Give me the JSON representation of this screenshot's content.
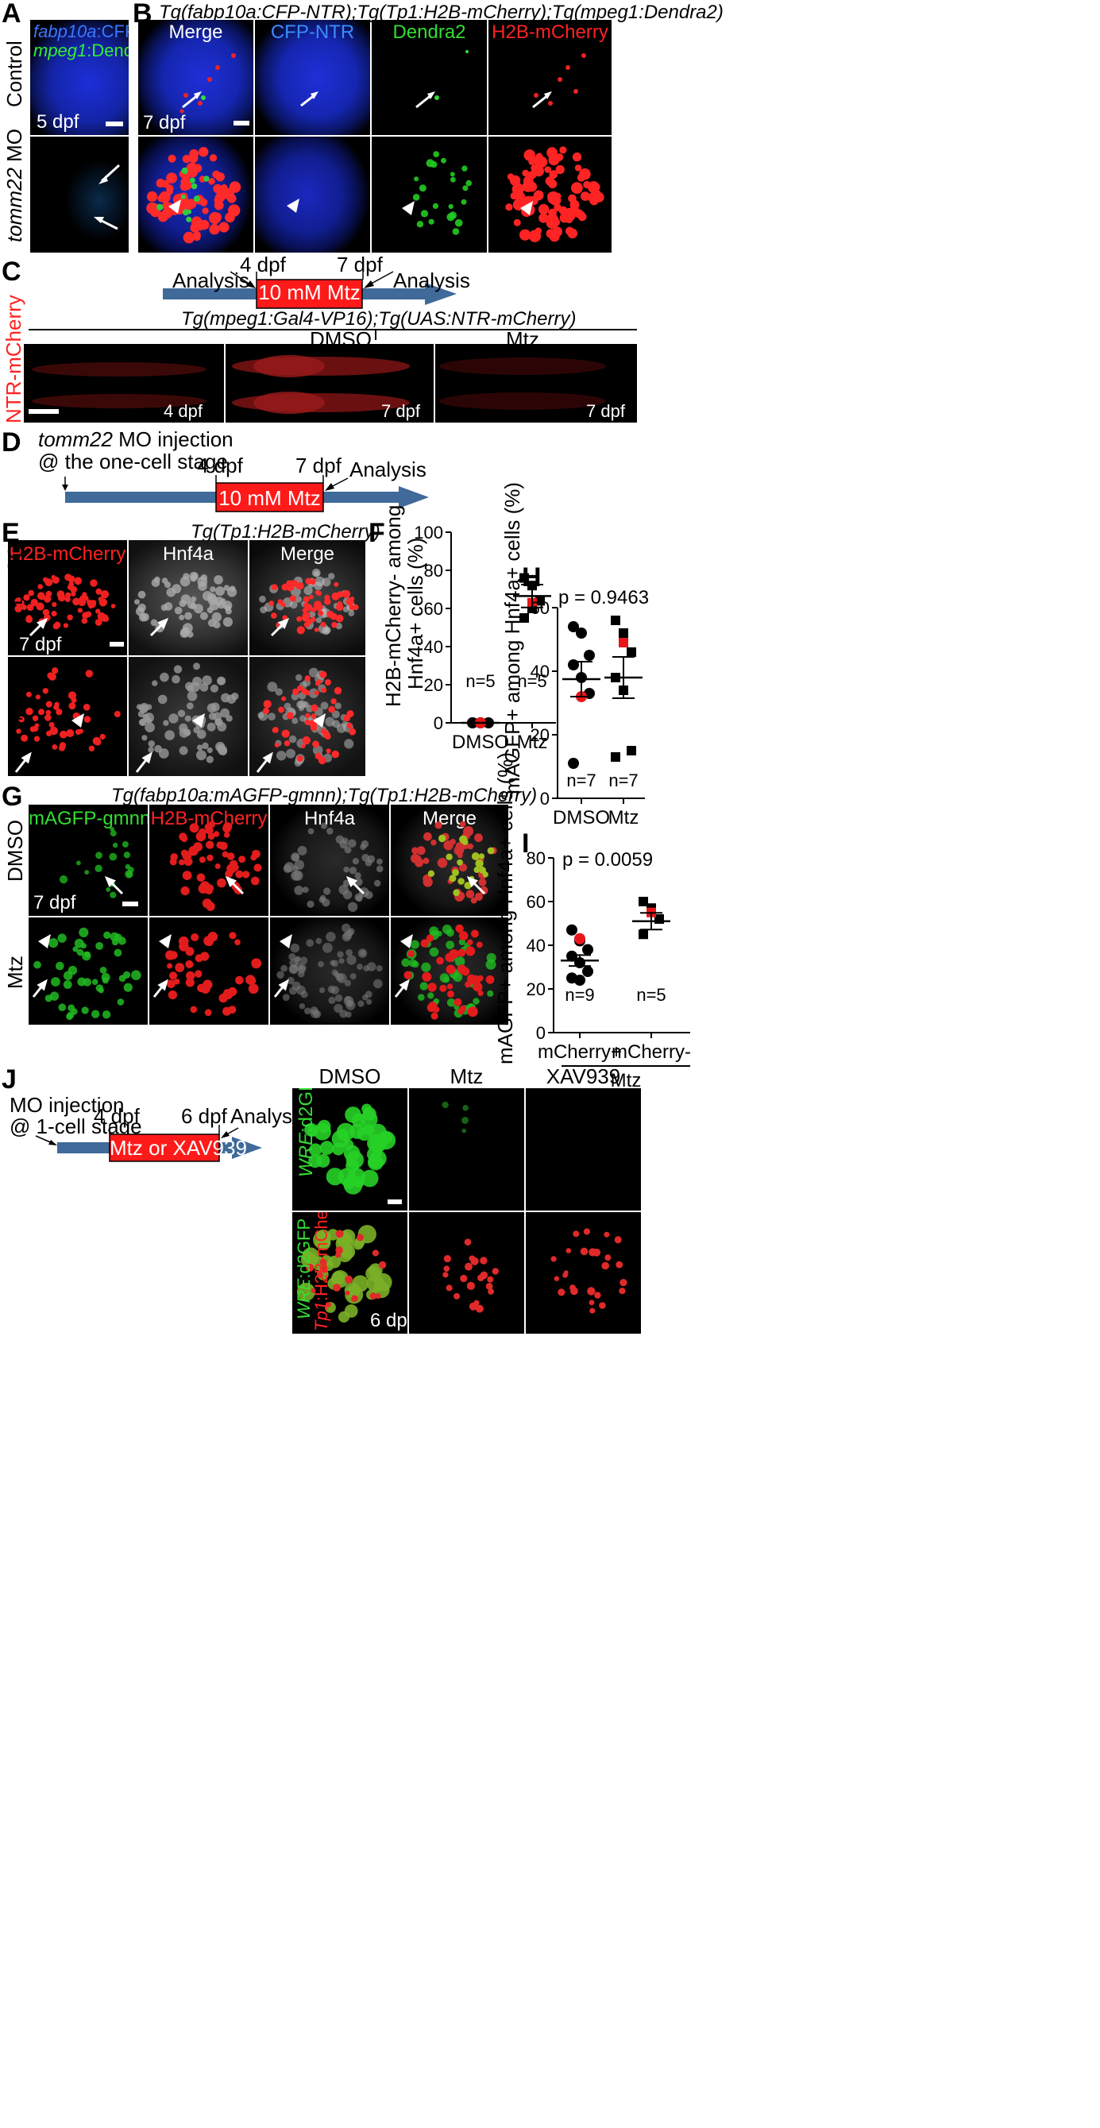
{
  "panels": {
    "A": "A",
    "B": "B",
    "C": "C",
    "D": "D",
    "E": "E",
    "F": "F",
    "G": "G",
    "H": "H",
    "I": "I",
    "J": "J"
  },
  "colors": {
    "blue": "#2a5cff",
    "green": "#33dd33",
    "red": "#ff2222",
    "timeline": "#3f6a9a",
    "mtzbox": "#ff1a1a"
  },
  "panelA": {
    "legend_gene1": "fabp10a",
    "legend_rest1": ":CFP-NTR",
    "legend_gene2": "mpeg1",
    "legend_rest2": ":Dendra2",
    "row1": "Control",
    "row2_gene": "tomm22",
    "row2_rest": " MO",
    "stage": "5 dpf"
  },
  "panelB": {
    "title": "Tg(fabp10a:CFP-NTR);Tg(Tp1:H2B-mCherry);Tg(mpeg1:Dendra2)",
    "cols": [
      "Merge",
      "CFP-NTR",
      "Dendra2",
      "H2B-mCherry"
    ],
    "stage": "7 dpf"
  },
  "panelC": {
    "t1": "4 dpf",
    "t2": "7 dpf",
    "box": "10 mM Mtz",
    "analysis_left": "Analysis",
    "analysis_right": "Analysis",
    "title": "Tg(mpeg1:Gal4-VP16);Tg(UAS:NTR-mCherry)",
    "side": "NTR-mCherry",
    "cols": [
      "DMSO",
      "Mtz"
    ],
    "stages": [
      "4 dpf",
      "7 dpf",
      "7 dpf"
    ]
  },
  "panelD": {
    "line1_gene": "tomm22",
    "line1_rest": " MO injection",
    "line2": "@ the one-cell stage",
    "t1": "4 dpf",
    "t2": "7 dpf",
    "box": "10 mM Mtz",
    "analysis": "Analysis"
  },
  "panelE": {
    "title": "Tg(Tp1:H2B-mCherry)",
    "cols": [
      "H2B-mCherry",
      "Hnf4a",
      "Merge"
    ],
    "rows": [
      "DMSO",
      "Mtz"
    ],
    "stage": "7 dpf"
  },
  "panelF": {
    "ylabel_l1": "H2B-mCherry- among",
    "ylabel_l2": "Hnf4a+ cells (%)",
    "yticks": [
      "0",
      "20",
      "40",
      "60",
      "80",
      "100"
    ],
    "n_labels": [
      "n=5",
      "n=5"
    ]
  },
  "panelG": {
    "title": "Tg(fabp10a:mAGFP-gmnn);Tg(Tp1:H2B-mCherry)",
    "cols": [
      "mAGFP-gmnn",
      "H2B-mCherry",
      "Hnf4a",
      "Merge"
    ],
    "rows": [
      "DMSO",
      "Mtz"
    ],
    "stage": "7 dpf"
  },
  "panelH": {
    "ylabel": "mAGFP+ among Hnf4a+ cells (%)",
    "pvalue": "p = 0.9463",
    "yticks": [
      "0",
      "20",
      "40",
      "60"
    ],
    "n_labels": [
      "n=7",
      "n=7"
    ]
  },
  "panelI": {
    "ylabel": "mAGFP+ among Hnf4a+ cells (%)",
    "pvalue": "p = 0.0059",
    "yticks": [
      "0",
      "20",
      "40",
      "60",
      "80"
    ],
    "n_labels": [
      "n=9",
      "n=5"
    ],
    "group": "Mtz"
  },
  "panelJ": {
    "line1": "MO injection",
    "line2": "@ 1-cell stage",
    "t1": "4 dpf",
    "t2": "6 dpf",
    "box": "Mtz or XAV939",
    "analysis": "Analysis",
    "cols": [
      "DMSO",
      "Mtz",
      "XAV939"
    ],
    "row1_gene": "WRE",
    "row1_rest": ":d2GFP",
    "row2_gene_a": "WRE",
    "row2_rest_a": ":d2GFP",
    "row2_gene_b": "Tp1",
    "row2_rest_b": ":H2B-mCherry",
    "stage": "6 dpf"
  },
  "chart_data": [
    {
      "type": "scatter",
      "panel": "F",
      "categories": [
        "DMSO",
        "Mtz"
      ],
      "ylabel": "H2B-mCherry- among Hnf4a+ cells (%)",
      "ylim": [
        0,
        100
      ],
      "yticks": [
        0,
        20,
        40,
        60,
        80,
        100
      ],
      "series": [
        {
          "values": [
            [
              0,
              0,
              0,
              0,
              0
            ],
            [
              76,
              72,
              64,
              55,
              60
            ]
          ]
        }
      ],
      "highlight": [
        [
          0
        ],
        [
          63
        ]
      ],
      "mean": [
        0,
        66.5
      ],
      "sem": [
        0,
        6
      ],
      "n": [
        "n=5",
        "n=5"
      ]
    },
    {
      "type": "scatter",
      "panel": "H",
      "categories": [
        "DMSO",
        "Mtz"
      ],
      "ylabel": "mAGFP+ among Hnf4a+ cells (%)",
      "ylim": [
        0,
        60
      ],
      "yticks": [
        0,
        20,
        40,
        60
      ],
      "pvalue": "p = 0.9463",
      "series": [
        {
          "values": [
            [
              54,
              52,
              45,
              42,
              38,
              33,
              11
            ],
            [
              56,
              52,
              46,
              38,
              34,
              15,
              13
            ]
          ]
        }
      ],
      "highlight": [
        [
          32
        ],
        [
          49
        ]
      ],
      "mean": [
        37.5,
        38
      ],
      "sem": [
        5.5,
        6.5
      ],
      "n": [
        "n=7",
        "n=7"
      ]
    },
    {
      "type": "scatter",
      "panel": "I",
      "categories": [
        "mCherry+",
        "mCherry-"
      ],
      "group": "Mtz",
      "ylabel": "mAGFP+ among Hnf4a+ cells (%)",
      "ylim": [
        0,
        80
      ],
      "yticks": [
        0,
        20,
        40,
        60,
        80
      ],
      "pvalue": "p = 0.0059",
      "series": [
        {
          "values": [
            [
              47,
              42,
              38,
              35,
              32,
              28,
              25,
              24
            ],
            [
              60,
              57,
              52,
              45
            ]
          ]
        }
      ],
      "highlight": [
        [
          43
        ],
        [
          55
        ]
      ],
      "mean": [
        33,
        51
      ],
      "sem": [
        2.5,
        3.8
      ],
      "n": [
        "n=9",
        "n=5"
      ]
    }
  ]
}
